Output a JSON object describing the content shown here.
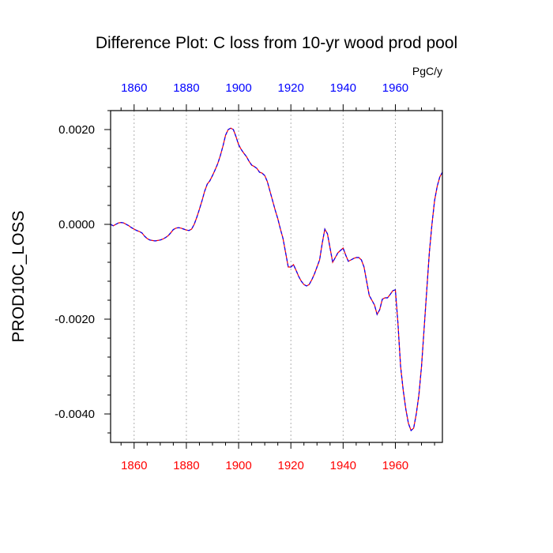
{
  "chart_data": {
    "type": "line",
    "title": "Difference Plot: C loss from 10-yr wood prod pool",
    "units": "PgC/y",
    "ylabel": "PROD10C_LOSS",
    "xlabel": "",
    "xlim": [
      1851,
      1978
    ],
    "ylim": [
      -0.0046,
      0.0024
    ],
    "xticks": [
      1860,
      1880,
      1900,
      1920,
      1940,
      1960
    ],
    "xtick_labels": [
      "1860",
      "1880",
      "1900",
      "1920",
      "1940",
      "1960"
    ],
    "yticks": [
      0.002,
      0.0,
      -0.002,
      -0.004
    ],
    "ytick_labels": [
      "0.0020",
      "0.0000",
      "-0.0020",
      "-0.0040"
    ],
    "grid": "vertical dotted",
    "colors": {
      "bottom_ticks": "#ff0000",
      "top_ticks": "#0000ff",
      "series_a": "#ff0000",
      "series_b": "#0000ff"
    },
    "x": [
      1851,
      1852,
      1853,
      1854,
      1855,
      1856,
      1857,
      1858,
      1859,
      1860,
      1861,
      1862,
      1863,
      1864,
      1865,
      1866,
      1867,
      1868,
      1869,
      1870,
      1871,
      1872,
      1873,
      1874,
      1875,
      1876,
      1877,
      1878,
      1879,
      1880,
      1881,
      1882,
      1883,
      1884,
      1885,
      1886,
      1887,
      1888,
      1889,
      1890,
      1891,
      1892,
      1893,
      1894,
      1895,
      1896,
      1897,
      1898,
      1899,
      1900,
      1901,
      1902,
      1903,
      1904,
      1905,
      1906,
      1907,
      1908,
      1909,
      1910,
      1911,
      1912,
      1913,
      1914,
      1915,
      1916,
      1917,
      1918,
      1919,
      1920,
      1921,
      1922,
      1923,
      1924,
      1925,
      1926,
      1927,
      1928,
      1929,
      1930,
      1931,
      1932,
      1933,
      1934,
      1935,
      1936,
      1937,
      1938,
      1939,
      1940,
      1941,
      1942,
      1943,
      1944,
      1945,
      1946,
      1947,
      1948,
      1949,
      1950,
      1951,
      1952,
      1953,
      1954,
      1955,
      1956,
      1957,
      1958,
      1959,
      1960,
      1961,
      1962,
      1963,
      1964,
      1965,
      1966,
      1967,
      1968,
      1969,
      1970,
      1971,
      1972,
      1973,
      1974,
      1975,
      1976,
      1977,
      1978
    ],
    "series": [
      {
        "values": [
          0.0,
          -3e-05,
          0.0,
          3e-05,
          4e-05,
          3e-05,
          0.0,
          -3e-05,
          -7e-05,
          -0.0001,
          -0.00013,
          -0.00015,
          -0.00018,
          -0.00025,
          -0.0003,
          -0.00033,
          -0.00034,
          -0.00035,
          -0.00034,
          -0.00033,
          -0.00031,
          -0.00028,
          -0.00024,
          -0.00018,
          -0.00011,
          -8e-05,
          -7e-05,
          -8e-05,
          -0.0001,
          -0.00012,
          -0.00013,
          -0.0001,
          0.0,
          0.00015,
          0.00032,
          0.0005,
          0.0007,
          0.00085,
          0.00092,
          0.00103,
          0.00115,
          0.00128,
          0.00145,
          0.00165,
          0.00188,
          0.002,
          0.00203,
          0.002,
          0.00185,
          0.00168,
          0.00158,
          0.0015,
          0.00143,
          0.00133,
          0.00125,
          0.00122,
          0.00118,
          0.0011,
          0.00108,
          0.00103,
          0.0009,
          0.0007,
          0.0005,
          0.0003,
          0.00012,
          -0.0001,
          -0.0003,
          -0.0006,
          -0.0009,
          -0.0009,
          -0.00085,
          -0.00097,
          -0.0011,
          -0.0012,
          -0.00127,
          -0.0013,
          -0.00127,
          -0.00117,
          -0.00105,
          -0.0009,
          -0.00075,
          -0.0004,
          -0.0001,
          -0.0002,
          -0.0005,
          -0.0008,
          -0.0007,
          -0.0006,
          -0.00055,
          -0.0005,
          -0.00065,
          -0.00078,
          -0.00075,
          -0.00072,
          -0.0007,
          -0.0007,
          -0.00075,
          -0.0009,
          -0.0012,
          -0.0015,
          -0.0016,
          -0.0017,
          -0.0019,
          -0.0018,
          -0.00158,
          -0.00155,
          -0.00155,
          -0.00148,
          -0.0014,
          -0.00138,
          -0.0021,
          -0.003,
          -0.0035,
          -0.0039,
          -0.0042,
          -0.00435,
          -0.0043,
          -0.004,
          -0.0036,
          -0.003,
          -0.0022,
          -0.0014,
          -0.0006,
          0.0,
          0.0005,
          0.0008,
          0.001,
          0.0011
        ]
      },
      {
        "values": [
          0.0,
          -3e-05,
          0.0,
          3e-05,
          4e-05,
          3e-05,
          0.0,
          -3e-05,
          -7e-05,
          -0.0001,
          -0.00013,
          -0.00015,
          -0.00018,
          -0.00025,
          -0.0003,
          -0.00033,
          -0.00034,
          -0.00035,
          -0.00034,
          -0.00033,
          -0.00031,
          -0.00028,
          -0.00024,
          -0.00018,
          -0.00011,
          -8e-05,
          -7e-05,
          -8e-05,
          -0.0001,
          -0.00012,
          -0.00013,
          -0.0001,
          0.0,
          0.00015,
          0.00032,
          0.0005,
          0.0007,
          0.00085,
          0.00092,
          0.00103,
          0.00115,
          0.00128,
          0.00145,
          0.00165,
          0.00188,
          0.002,
          0.00203,
          0.002,
          0.00185,
          0.00168,
          0.00158,
          0.0015,
          0.00143,
          0.00133,
          0.00125,
          0.00122,
          0.00118,
          0.0011,
          0.00108,
          0.00103,
          0.0009,
          0.0007,
          0.0005,
          0.0003,
          0.00012,
          -0.0001,
          -0.0003,
          -0.0006,
          -0.0009,
          -0.0009,
          -0.00085,
          -0.00097,
          -0.0011,
          -0.0012,
          -0.00127,
          -0.0013,
          -0.00127,
          -0.00117,
          -0.00105,
          -0.0009,
          -0.00075,
          -0.0004,
          -0.0001,
          -0.0002,
          -0.0005,
          -0.0008,
          -0.0007,
          -0.0006,
          -0.00055,
          -0.0005,
          -0.00065,
          -0.00078,
          -0.00075,
          -0.00072,
          -0.0007,
          -0.0007,
          -0.00075,
          -0.0009,
          -0.0012,
          -0.0015,
          -0.0016,
          -0.0017,
          -0.0019,
          -0.0018,
          -0.00158,
          -0.00155,
          -0.00155,
          -0.00148,
          -0.0014,
          -0.00138,
          -0.0021,
          -0.003,
          -0.0035,
          -0.0039,
          -0.0042,
          -0.00435,
          -0.0043,
          -0.004,
          -0.0036,
          -0.003,
          -0.0022,
          -0.0014,
          -0.0006,
          0.0,
          0.0005,
          0.0008,
          0.001,
          0.0011
        ]
      }
    ]
  }
}
